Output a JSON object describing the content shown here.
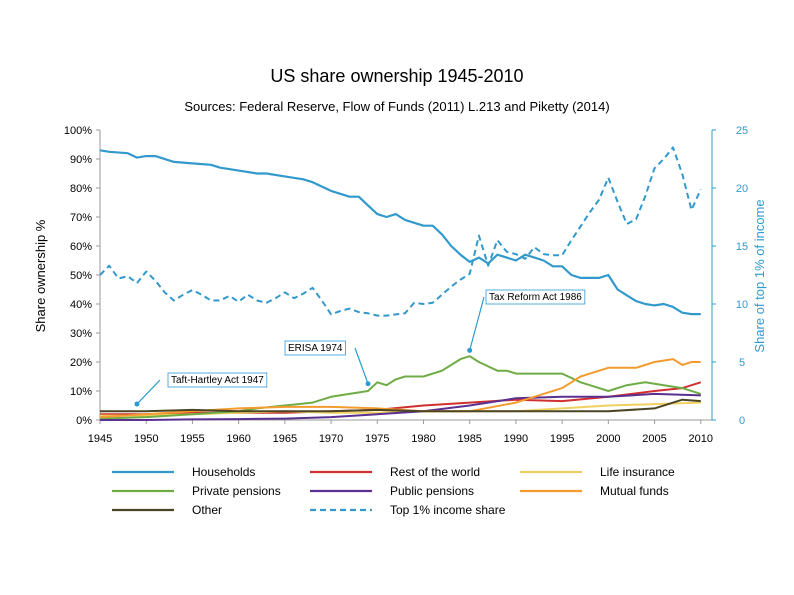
{
  "chart_data": {
    "type": "line",
    "title": "US share ownership 1945-2010",
    "subtitle": "Sources: Federal Reserve, Flow of Funds (2011) L.213 and Piketty (2014)",
    "ylabel": "Share ownership %",
    "y2label": "Share of top 1% of income",
    "xlim": [
      1945,
      2011
    ],
    "ylim": [
      0,
      100
    ],
    "y2lim": [
      0,
      25
    ],
    "x_ticks": [
      "1945",
      "1950",
      "1955",
      "1960",
      "1965",
      "1970",
      "1975",
      "1980",
      "1985",
      "1990",
      "1995",
      "2000",
      "2005",
      "2010"
    ],
    "y_ticks": [
      "0%",
      "10%",
      "20%",
      "30%",
      "40%",
      "50%",
      "60%",
      "70%",
      "80%",
      "90%",
      "100%"
    ],
    "y2_ticks": [
      "0",
      "5",
      "10",
      "15",
      "20",
      "25"
    ],
    "series": [
      {
        "name": "Households",
        "color": "#3399cc",
        "axis": "left",
        "dash": false,
        "x": [
          1945,
          1946,
          1948,
          1949,
          1950,
          1951,
          1953,
          1955,
          1957,
          1958,
          1960,
          1962,
          1963,
          1965,
          1967,
          1968,
          1970,
          1972,
          1973,
          1974,
          1975,
          1976,
          1977,
          1978,
          1980,
          1981,
          1982,
          1983,
          1984,
          1985,
          1986,
          1987,
          1988,
          1989,
          1990,
          1991,
          1992,
          1993,
          1994,
          1995,
          1996,
          1997,
          1999,
          2000,
          2001,
          2002,
          2003,
          2004,
          2005,
          2006,
          2007,
          2008,
          2009,
          2010
        ],
        "values": [
          93,
          92.5,
          92,
          90.5,
          91,
          91,
          89,
          88.5,
          88,
          87,
          86,
          85,
          85,
          84,
          83,
          82,
          79,
          77,
          77,
          74,
          71,
          70,
          71,
          69,
          67,
          67,
          64,
          60,
          57,
          54.5,
          56,
          54,
          57,
          56,
          55,
          57,
          56,
          55,
          53,
          53,
          50,
          49,
          49,
          50,
          45,
          43,
          41,
          40,
          39.5,
          40,
          39,
          37,
          36.5,
          36.5
        ]
      },
      {
        "name": "Rest of the world",
        "color": "#d03030",
        "axis": "left",
        "dash": false,
        "x": [
          1945,
          1950,
          1955,
          1960,
          1965,
          1970,
          1975,
          1980,
          1985,
          1990,
          1995,
          2000,
          2005,
          2008,
          2010
        ],
        "values": [
          2,
          2,
          2.5,
          2.5,
          2.5,
          3,
          3.5,
          5,
          6,
          7,
          6.5,
          8,
          10,
          11,
          13
        ]
      },
      {
        "name": "Life insurance",
        "color": "#f0d060",
        "axis": "left",
        "dash": false,
        "x": [
          1945,
          1950,
          1955,
          1960,
          1965,
          1970,
          1975,
          1980,
          1985,
          1990,
          1995,
          2000,
          2005,
          2010
        ],
        "values": [
          1.5,
          1.5,
          2,
          2.5,
          3,
          2.5,
          2.5,
          3,
          3,
          3,
          4,
          5,
          5.5,
          6
        ]
      },
      {
        "name": "Private pensions",
        "color": "#6fac45",
        "axis": "left",
        "dash": false,
        "x": [
          1945,
          1950,
          1955,
          1960,
          1962,
          1965,
          1968,
          1970,
          1972,
          1974,
          1975,
          1976,
          1977,
          1978,
          1980,
          1982,
          1984,
          1985,
          1986,
          1988,
          1989,
          1990,
          1991,
          1993,
          1995,
          1997,
          1999,
          2000,
          2002,
          2004,
          2006,
          2008,
          2010
        ],
        "values": [
          0.5,
          1,
          2,
          3,
          4,
          5,
          6,
          8,
          9,
          10,
          13,
          12,
          14,
          15,
          15,
          17,
          21,
          22,
          20,
          17,
          17,
          16,
          16,
          16,
          16,
          13,
          11,
          10,
          12,
          13,
          12,
          11,
          9
        ]
      },
      {
        "name": "Public pensions",
        "color": "#5a3090",
        "axis": "left",
        "dash": false,
        "x": [
          1945,
          1950,
          1955,
          1960,
          1965,
          1970,
          1975,
          1980,
          1985,
          1990,
          1995,
          2000,
          2005,
          2010
        ],
        "values": [
          0,
          0,
          0.2,
          0.3,
          0.5,
          1,
          2,
          3,
          5,
          7.5,
          8,
          8,
          9,
          8.5
        ]
      },
      {
        "name": "Mutual funds",
        "color": "#f39b2f",
        "axis": "left",
        "dash": false,
        "x": [
          1945,
          1950,
          1955,
          1960,
          1965,
          1970,
          1975,
          1980,
          1985,
          1990,
          1995,
          1997,
          1999,
          2000,
          2003,
          2005,
          2007,
          2008,
          2009,
          2010
        ],
        "values": [
          1,
          2,
          3,
          4,
          4.5,
          4.5,
          4,
          3,
          3,
          6,
          11,
          15,
          17,
          18,
          18,
          20,
          21,
          19,
          20,
          20
        ]
      },
      {
        "name": "Other",
        "color": "#4b4524",
        "axis": "left",
        "dash": false,
        "x": [
          1945,
          1950,
          1955,
          1960,
          1965,
          1970,
          1975,
          1980,
          1985,
          1990,
          1995,
          2000,
          2005,
          2008,
          2010
        ],
        "values": [
          3,
          3,
          3.5,
          3,
          3,
          3,
          3.5,
          3,
          3,
          3,
          3,
          3,
          4,
          7,
          6.5
        ]
      },
      {
        "name": "Top 1% income share",
        "color": "#3399cc",
        "axis": "right",
        "dash": true,
        "x": [
          1945,
          1946,
          1947,
          1948,
          1949,
          1950,
          1951,
          1952,
          1953,
          1954,
          1955,
          1956,
          1957,
          1958,
          1959,
          1960,
          1961,
          1962,
          1963,
          1964,
          1965,
          1966,
          1967,
          1968,
          1969,
          1970,
          1971,
          1972,
          1973,
          1974,
          1975,
          1976,
          1977,
          1978,
          1979,
          1980,
          1981,
          1982,
          1983,
          1984,
          1985,
          1986,
          1987,
          1988,
          1989,
          1990,
          1991,
          1992,
          1993,
          1994,
          1995,
          1996,
          1997,
          1998,
          1999,
          2000,
          2001,
          2002,
          2003,
          2004,
          2005,
          2006,
          2007,
          2008,
          2009,
          2010
        ],
        "values": [
          12.5,
          13.3,
          12.2,
          12.4,
          11.8,
          12.8,
          12,
          11,
          10.3,
          10.8,
          11.2,
          10.8,
          10.3,
          10.3,
          10.7,
          10.2,
          10.8,
          10.3,
          10.1,
          10.5,
          11,
          10.5,
          10.9,
          11.4,
          10.3,
          9.1,
          9.4,
          9.6,
          9.3,
          9.2,
          9,
          9,
          9.1,
          9.2,
          10.1,
          10,
          10.1,
          10.8,
          11.5,
          12.1,
          12.6,
          15.9,
          13.3,
          15.5,
          14.5,
          14.3,
          13.9,
          14.9,
          14.3,
          14.2,
          14.2,
          15.5,
          16.7,
          17.9,
          19,
          20.9,
          18.8,
          16.9,
          17.3,
          19.3,
          21.7,
          22.5,
          23.5,
          21.2,
          18.1,
          19.9
        ]
      }
    ],
    "legend_order": [
      "Households",
      "Rest of the world",
      "Life insurance",
      "Private pensions",
      "Public pensions",
      "Mutual funds",
      "Other",
      "Top 1% income share"
    ],
    "annotations": [
      {
        "text": "Taft-Hartley Act 1947",
        "x": 1949,
        "y": 5.5
      },
      {
        "text": "ERISA 1974",
        "x": 1974,
        "y": 12.5
      },
      {
        "text": "Tax Reform Act 1986",
        "x": 1985,
        "y": 24
      }
    ]
  }
}
